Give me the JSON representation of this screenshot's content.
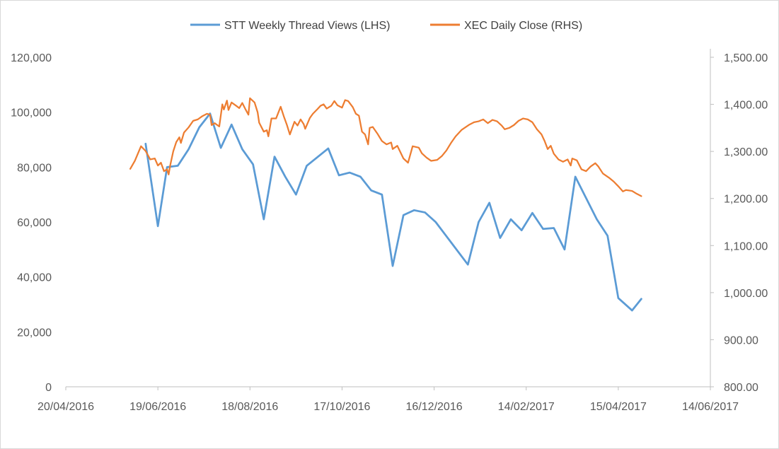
{
  "chart_data": {
    "type": "line",
    "legend_position": "top",
    "grid": false,
    "x_axis": {
      "type": "date",
      "range": [
        "2016-04-20",
        "2017-06-14"
      ],
      "ticks": [
        "20/04/2016",
        "19/06/2016",
        "18/08/2016",
        "17/10/2016",
        "16/12/2016",
        "14/02/2017",
        "15/04/2017",
        "14/06/2017"
      ]
    },
    "y_axis_left": {
      "range": [
        0,
        120000
      ],
      "ticks": [
        "0",
        "20,000",
        "40,000",
        "60,000",
        "80,000",
        "100,000",
        "120,000"
      ]
    },
    "y_axis_right": {
      "range": [
        800,
        1500
      ],
      "ticks": [
        "800.00",
        "900.00",
        "1,000.00",
        "1,100.00",
        "1,200.00",
        "1,300.00",
        "1,400.00",
        "1,500.00"
      ]
    },
    "series": [
      {
        "name": "STT Weekly Thread Views (LHS)",
        "axis": "left",
        "color": "#5b9bd5",
        "points": [
          [
            "2016-06-11",
            88500
          ],
          [
            "2016-06-19",
            58500
          ],
          [
            "2016-06-25",
            80000
          ],
          [
            "2016-07-02",
            80500
          ],
          [
            "2016-07-09",
            86500
          ],
          [
            "2016-07-16",
            94500
          ],
          [
            "2016-07-23",
            99500
          ],
          [
            "2016-07-30",
            87000
          ],
          [
            "2016-08-06",
            95500
          ],
          [
            "2016-08-13",
            86500
          ],
          [
            "2016-08-20",
            81000
          ],
          [
            "2016-08-27",
            61000
          ],
          [
            "2016-09-03",
            83800
          ],
          [
            "2016-09-10",
            76500
          ],
          [
            "2016-09-17",
            70000
          ],
          [
            "2016-09-24",
            80500
          ],
          [
            "2016-10-08",
            86800
          ],
          [
            "2016-10-15",
            77000
          ],
          [
            "2016-10-22",
            78000
          ],
          [
            "2016-10-29",
            76500
          ],
          [
            "2016-11-05",
            71500
          ],
          [
            "2016-11-12",
            70000
          ],
          [
            "2016-11-19",
            44000
          ],
          [
            "2016-11-26",
            62500
          ],
          [
            "2016-12-03",
            64300
          ],
          [
            "2016-12-10",
            63500
          ],
          [
            "2016-12-17",
            60000
          ],
          [
            "2017-01-07",
            44500
          ],
          [
            "2017-01-14",
            60000
          ],
          [
            "2017-01-21",
            67000
          ],
          [
            "2017-01-28",
            54200
          ],
          [
            "2017-02-04",
            61000
          ],
          [
            "2017-02-11",
            57000
          ],
          [
            "2017-02-18",
            63300
          ],
          [
            "2017-02-25",
            57500
          ],
          [
            "2017-03-04",
            57800
          ],
          [
            "2017-03-11",
            50000
          ],
          [
            "2017-03-18",
            76500
          ],
          [
            "2017-04-01",
            61000
          ],
          [
            "2017-04-08",
            55000
          ],
          [
            "2017-04-15",
            32300
          ],
          [
            "2017-04-24",
            27800
          ],
          [
            "2017-04-30",
            32000
          ]
        ]
      },
      {
        "name": "XEC Daily Close (RHS)",
        "axis": "right",
        "color": "#ed7d31",
        "points": [
          [
            "2016-06-01",
            1263
          ],
          [
            "2016-06-04",
            1280
          ],
          [
            "2016-06-08",
            1311
          ],
          [
            "2016-06-11",
            1301
          ],
          [
            "2016-06-14",
            1283
          ],
          [
            "2016-06-17",
            1285
          ],
          [
            "2016-06-19",
            1270
          ],
          [
            "2016-06-21",
            1276
          ],
          [
            "2016-06-23",
            1258
          ],
          [
            "2016-06-25",
            1262
          ],
          [
            "2016-06-26",
            1251
          ],
          [
            "2016-06-27",
            1270
          ],
          [
            "2016-06-29",
            1300
          ],
          [
            "2016-07-01",
            1320
          ],
          [
            "2016-07-03",
            1330
          ],
          [
            "2016-07-04",
            1318
          ],
          [
            "2016-07-06",
            1340
          ],
          [
            "2016-07-09",
            1351
          ],
          [
            "2016-07-12",
            1365
          ],
          [
            "2016-07-15",
            1368
          ],
          [
            "2016-07-18",
            1375
          ],
          [
            "2016-07-21",
            1380
          ],
          [
            "2016-07-23",
            1378
          ],
          [
            "2016-07-24",
            1356
          ],
          [
            "2016-07-26",
            1360
          ],
          [
            "2016-07-29",
            1353
          ],
          [
            "2016-07-31",
            1400
          ],
          [
            "2016-08-01",
            1389
          ],
          [
            "2016-08-03",
            1408
          ],
          [
            "2016-08-04",
            1388
          ],
          [
            "2016-08-06",
            1404
          ],
          [
            "2016-08-09",
            1397
          ],
          [
            "2016-08-11",
            1392
          ],
          [
            "2016-08-13",
            1403
          ],
          [
            "2016-08-15",
            1390
          ],
          [
            "2016-08-17",
            1378
          ],
          [
            "2016-08-18",
            1413
          ],
          [
            "2016-08-21",
            1404
          ],
          [
            "2016-08-23",
            1383
          ],
          [
            "2016-08-24",
            1361
          ],
          [
            "2016-08-27",
            1342
          ],
          [
            "2016-08-29",
            1345
          ],
          [
            "2016-08-30",
            1332
          ],
          [
            "2016-09-01",
            1370
          ],
          [
            "2016-09-04",
            1370
          ],
          [
            "2016-09-07",
            1395
          ],
          [
            "2016-09-09",
            1375
          ],
          [
            "2016-09-11",
            1357
          ],
          [
            "2016-09-13",
            1336
          ],
          [
            "2016-09-16",
            1363
          ],
          [
            "2016-09-18",
            1355
          ],
          [
            "2016-09-20",
            1368
          ],
          [
            "2016-09-22",
            1358
          ],
          [
            "2016-09-23",
            1348
          ],
          [
            "2016-09-26",
            1371
          ],
          [
            "2016-09-28",
            1380
          ],
          [
            "2016-10-01",
            1390
          ],
          [
            "2016-10-03",
            1397
          ],
          [
            "2016-10-05",
            1400
          ],
          [
            "2016-10-07",
            1391
          ],
          [
            "2016-10-10",
            1397
          ],
          [
            "2016-10-12",
            1407
          ],
          [
            "2016-10-14",
            1398
          ],
          [
            "2016-10-17",
            1393
          ],
          [
            "2016-10-19",
            1409
          ],
          [
            "2016-10-21",
            1407
          ],
          [
            "2016-10-24",
            1394
          ],
          [
            "2016-10-26",
            1380
          ],
          [
            "2016-10-28",
            1376
          ],
          [
            "2016-10-30",
            1342
          ],
          [
            "2016-11-01",
            1336
          ],
          [
            "2016-11-03",
            1315
          ],
          [
            "2016-11-04",
            1350
          ],
          [
            "2016-11-06",
            1352
          ],
          [
            "2016-11-09",
            1338
          ],
          [
            "2016-11-12",
            1322
          ],
          [
            "2016-11-15",
            1315
          ],
          [
            "2016-11-18",
            1319
          ],
          [
            "2016-11-19",
            1305
          ],
          [
            "2016-11-22",
            1312
          ],
          [
            "2016-11-26",
            1285
          ],
          [
            "2016-11-29",
            1276
          ],
          [
            "2016-12-02",
            1311
          ],
          [
            "2016-12-06",
            1308
          ],
          [
            "2016-12-08",
            1296
          ],
          [
            "2016-12-11",
            1287
          ],
          [
            "2016-12-14",
            1280
          ],
          [
            "2016-12-18",
            1282
          ],
          [
            "2016-12-21",
            1290
          ],
          [
            "2016-12-24",
            1302
          ],
          [
            "2016-12-27",
            1318
          ],
          [
            "2016-12-30",
            1332
          ],
          [
            "2017-01-03",
            1346
          ],
          [
            "2017-01-08",
            1357
          ],
          [
            "2017-01-11",
            1362
          ],
          [
            "2017-01-14",
            1364
          ],
          [
            "2017-01-17",
            1368
          ],
          [
            "2017-01-20",
            1360
          ],
          [
            "2017-01-23",
            1367
          ],
          [
            "2017-01-26",
            1364
          ],
          [
            "2017-01-29",
            1355
          ],
          [
            "2017-01-31",
            1347
          ],
          [
            "2017-02-03",
            1350
          ],
          [
            "2017-02-06",
            1356
          ],
          [
            "2017-02-09",
            1365
          ],
          [
            "2017-02-12",
            1370
          ],
          [
            "2017-02-15",
            1368
          ],
          [
            "2017-02-18",
            1362
          ],
          [
            "2017-02-21",
            1347
          ],
          [
            "2017-02-24",
            1336
          ],
          [
            "2017-02-26",
            1322
          ],
          [
            "2017-02-28",
            1305
          ],
          [
            "2017-03-02",
            1312
          ],
          [
            "2017-03-04",
            1295
          ],
          [
            "2017-03-07",
            1283
          ],
          [
            "2017-03-10",
            1278
          ],
          [
            "2017-03-13",
            1283
          ],
          [
            "2017-03-15",
            1270
          ],
          [
            "2017-03-16",
            1285
          ],
          [
            "2017-03-19",
            1281
          ],
          [
            "2017-03-22",
            1262
          ],
          [
            "2017-03-25",
            1258
          ],
          [
            "2017-03-28",
            1268
          ],
          [
            "2017-03-31",
            1275
          ],
          [
            "2017-04-02",
            1268
          ],
          [
            "2017-04-05",
            1253
          ],
          [
            "2017-04-09",
            1244
          ],
          [
            "2017-04-12",
            1236
          ],
          [
            "2017-04-15",
            1226
          ],
          [
            "2017-04-18",
            1215
          ],
          [
            "2017-04-20",
            1218
          ],
          [
            "2017-04-24",
            1216
          ],
          [
            "2017-04-27",
            1210
          ],
          [
            "2017-04-30",
            1205
          ]
        ]
      }
    ]
  }
}
